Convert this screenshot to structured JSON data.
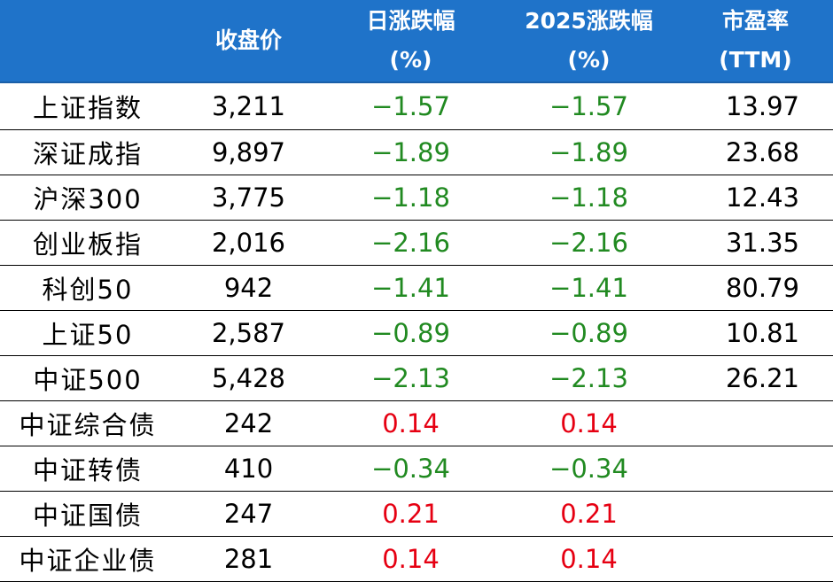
{
  "table": {
    "headers": {
      "close": "收盘价",
      "daily_line1": "日涨跌幅",
      "daily_line2": "(%)",
      "ytd_line1": "2025涨跌幅",
      "ytd_line2": "(%)",
      "pe_line1": "市盈率",
      "pe_line2": "(TTM)"
    },
    "colors": {
      "header_bg": "#1f73c9",
      "negative": "#218a21",
      "positive": "#e60012"
    },
    "rows": [
      {
        "name": "上证指数",
        "close": "3,211",
        "daily": "−1.57",
        "ytd": "−1.57",
        "pe": "13.97",
        "daily_sign": "neg",
        "ytd_sign": "neg"
      },
      {
        "name": "深证成指",
        "close": "9,897",
        "daily": "−1.89",
        "ytd": "−1.89",
        "pe": "23.68",
        "daily_sign": "neg",
        "ytd_sign": "neg"
      },
      {
        "name": "沪深300",
        "close": "3,775",
        "daily": "−1.18",
        "ytd": "−1.18",
        "pe": "12.43",
        "daily_sign": "neg",
        "ytd_sign": "neg"
      },
      {
        "name": "创业板指",
        "close": "2,016",
        "daily": "−2.16",
        "ytd": "−2.16",
        "pe": "31.35",
        "daily_sign": "neg",
        "ytd_sign": "neg"
      },
      {
        "name": "科创50",
        "close": "942",
        "daily": "−1.41",
        "ytd": "−1.41",
        "pe": "80.79",
        "daily_sign": "neg",
        "ytd_sign": "neg"
      },
      {
        "name": "上证50",
        "close": "2,587",
        "daily": "−0.89",
        "ytd": "−0.89",
        "pe": "10.81",
        "daily_sign": "neg",
        "ytd_sign": "neg"
      },
      {
        "name": "中证500",
        "close": "5,428",
        "daily": "−2.13",
        "ytd": "−2.13",
        "pe": "26.21",
        "daily_sign": "neg",
        "ytd_sign": "neg"
      },
      {
        "name": "中证综合债",
        "close": "242",
        "daily": "0.14",
        "ytd": "0.14",
        "pe": "",
        "daily_sign": "pos",
        "ytd_sign": "pos"
      },
      {
        "name": "中证转债",
        "close": "410",
        "daily": "−0.34",
        "ytd": "−0.34",
        "pe": "",
        "daily_sign": "neg",
        "ytd_sign": "neg"
      },
      {
        "name": "中证国债",
        "close": "247",
        "daily": "0.21",
        "ytd": "0.21",
        "pe": "",
        "daily_sign": "pos",
        "ytd_sign": "pos"
      },
      {
        "name": "中证企业债",
        "close": "281",
        "daily": "0.14",
        "ytd": "0.14",
        "pe": "",
        "daily_sign": "pos",
        "ytd_sign": "pos"
      }
    ]
  }
}
